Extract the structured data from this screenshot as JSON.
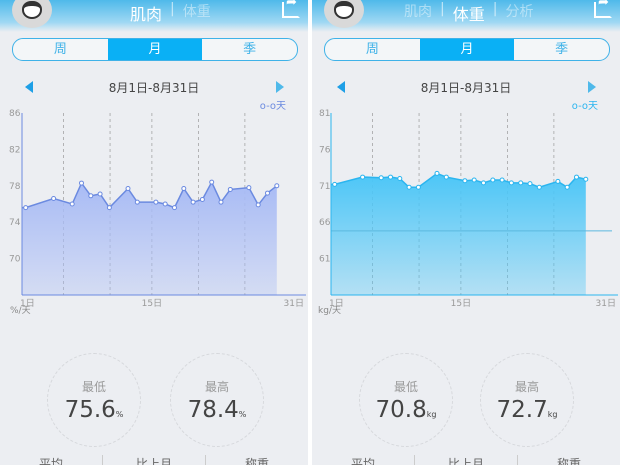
{
  "panels": [
    {
      "header": {
        "tabs": [
          "肌肉",
          "体重"
        ],
        "active": 0
      },
      "periods": [
        "周",
        "月",
        "季"
      ],
      "active_period": 1,
      "date_range": "8月1日-8月31日",
      "legend": "天",
      "stats": {
        "min_label": "最低",
        "min_value": "75.6",
        "max_label": "最高",
        "max_value": "78.4",
        "unit": "%"
      },
      "bottom": [
        "平均",
        "比上月",
        "称重"
      ],
      "chart_data": {
        "type": "area",
        "x_ticks": [
          "1日",
          "15日",
          "31日"
        ],
        "y_unit": "%/天",
        "y_ticks": [
          86,
          82,
          78,
          74,
          70
        ],
        "ylim": [
          66,
          86
        ],
        "xlim": [
          1,
          31
        ],
        "x": [
          1,
          4,
          6,
          7,
          8,
          9,
          10,
          12,
          13,
          15,
          16,
          17,
          18,
          19,
          20,
          21,
          22,
          23,
          25,
          26,
          27,
          28
        ],
        "y": [
          75.6,
          76.6,
          76.0,
          78.3,
          76.9,
          77.1,
          75.6,
          77.7,
          76.2,
          76.2,
          76.0,
          75.6,
          77.7,
          76.2,
          76.5,
          78.4,
          76.2,
          77.6,
          77.8,
          75.9,
          77.2,
          78.0
        ],
        "color": "#6b8ae0",
        "fill": "#a8bbf5"
      }
    },
    {
      "header": {
        "tabs": [
          "肌肉",
          "体重",
          "分析"
        ],
        "active": 1
      },
      "periods": [
        "周",
        "月",
        "季"
      ],
      "active_period": 1,
      "date_range": "8月1日-8月31日",
      "legend": "天",
      "stats": {
        "min_label": "最低",
        "min_value": "70.8",
        "max_label": "最高",
        "max_value": "72.7",
        "unit": "kg"
      },
      "bottom": [
        "平均",
        "比上月",
        "称重"
      ],
      "chart_data": {
        "type": "area",
        "x_ticks": [
          "1日",
          "15日",
          "31日"
        ],
        "y_unit": "kg/天",
        "y_ticks": [
          81,
          76,
          71,
          66,
          61
        ],
        "ylim": [
          56,
          81
        ],
        "xlim": [
          1,
          31
        ],
        "target_line": 64.8,
        "x": [
          1,
          4,
          6,
          7,
          8,
          9,
          10,
          12,
          13,
          15,
          16,
          17,
          18,
          19,
          20,
          21,
          22,
          23,
          25,
          26,
          27,
          28
        ],
        "y": [
          71.2,
          72.2,
          72.1,
          72.2,
          72.0,
          70.8,
          70.8,
          72.7,
          72.2,
          71.7,
          71.8,
          71.4,
          71.8,
          71.8,
          71.4,
          71.4,
          71.3,
          70.8,
          71.6,
          70.8,
          72.2,
          71.9
        ],
        "color": "#2bb5ef",
        "fill": "#4cc6f7"
      }
    }
  ]
}
